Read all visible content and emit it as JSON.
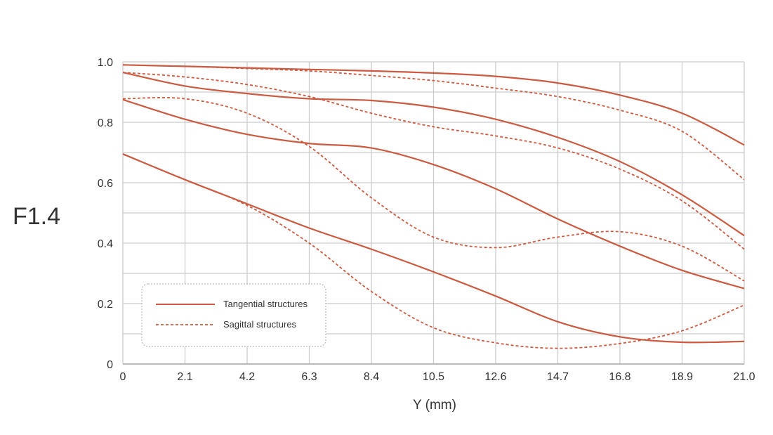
{
  "chart_data": {
    "type": "line",
    "title": "F1.4",
    "xlabel": "Y (mm)",
    "ylabel": "",
    "x_ticks": [
      "0",
      "2.1",
      "4.2",
      "6.3",
      "8.4",
      "10.5",
      "12.6",
      "14.7",
      "16.8",
      "18.9",
      "21.0"
    ],
    "y_ticks": [
      "0",
      "0.2",
      "0.4",
      "0.6",
      "0.8",
      "1.0"
    ],
    "xlim": [
      0,
      21
    ],
    "ylim": [
      0,
      1
    ],
    "grid": true,
    "legend_position": "bottom-left",
    "colors": {
      "series": "#cc5a40",
      "grid": "#cccccc",
      "axis": "#bbbbbb",
      "text": "#333333"
    },
    "legend": [
      {
        "label": "Tangential structures",
        "style": "solid"
      },
      {
        "label": "Sagittal structures",
        "style": "dashed"
      }
    ],
    "series": [
      {
        "style": "solid",
        "x": [
          0,
          2.1,
          4.2,
          6.3,
          8.4,
          10.5,
          12.6,
          14.7,
          16.8,
          18.9,
          21.0
        ],
        "y": [
          0.99,
          0.985,
          0.98,
          0.975,
          0.97,
          0.963,
          0.952,
          0.93,
          0.89,
          0.83,
          0.725
        ]
      },
      {
        "style": "dashed",
        "x": [
          0,
          2.1,
          4.2,
          6.3,
          8.4,
          10.5,
          12.6,
          14.7,
          16.8,
          18.9,
          21.0
        ],
        "y": [
          0.99,
          0.985,
          0.978,
          0.97,
          0.955,
          0.938,
          0.913,
          0.885,
          0.84,
          0.77,
          0.61
        ]
      },
      {
        "style": "solid",
        "x": [
          0,
          2.1,
          4.2,
          6.3,
          8.4,
          10.5,
          12.6,
          14.7,
          16.8,
          18.9,
          21.0
        ],
        "y": [
          0.965,
          0.92,
          0.895,
          0.878,
          0.872,
          0.85,
          0.81,
          0.75,
          0.67,
          0.56,
          0.425
        ]
      },
      {
        "style": "dashed",
        "x": [
          0,
          2.1,
          4.2,
          6.3,
          8.4,
          10.5,
          12.6,
          14.7,
          16.8,
          18.9,
          21.0
        ],
        "y": [
          0.965,
          0.95,
          0.925,
          0.885,
          0.83,
          0.785,
          0.755,
          0.715,
          0.645,
          0.54,
          0.38
        ]
      },
      {
        "style": "solid",
        "x": [
          0,
          2.1,
          4.2,
          6.3,
          8.4,
          10.5,
          12.6,
          14.7,
          16.8,
          18.9,
          21.0
        ],
        "y": [
          0.875,
          0.81,
          0.76,
          0.73,
          0.715,
          0.66,
          0.58,
          0.48,
          0.39,
          0.31,
          0.25
        ]
      },
      {
        "style": "dashed",
        "x": [
          0,
          2.1,
          4.2,
          6.3,
          8.4,
          10.5,
          12.6,
          14.7,
          16.8,
          18.9,
          21.0
        ],
        "y": [
          0.878,
          0.878,
          0.83,
          0.72,
          0.55,
          0.42,
          0.385,
          0.42,
          0.438,
          0.39,
          0.275
        ]
      },
      {
        "style": "solid",
        "x": [
          0,
          2.1,
          4.2,
          6.3,
          8.4,
          10.5,
          12.6,
          14.7,
          16.8,
          18.9,
          21.0
        ],
        "y": [
          0.695,
          0.61,
          0.53,
          0.45,
          0.38,
          0.305,
          0.225,
          0.14,
          0.09,
          0.072,
          0.075
        ]
      },
      {
        "style": "dashed",
        "x": [
          0,
          2.1,
          4.2,
          6.3,
          8.4,
          10.5,
          12.6,
          14.7,
          16.8,
          18.9,
          21.0
        ],
        "y": [
          0.695,
          0.61,
          0.525,
          0.4,
          0.24,
          0.12,
          0.07,
          0.052,
          0.068,
          0.11,
          0.195
        ]
      }
    ]
  }
}
